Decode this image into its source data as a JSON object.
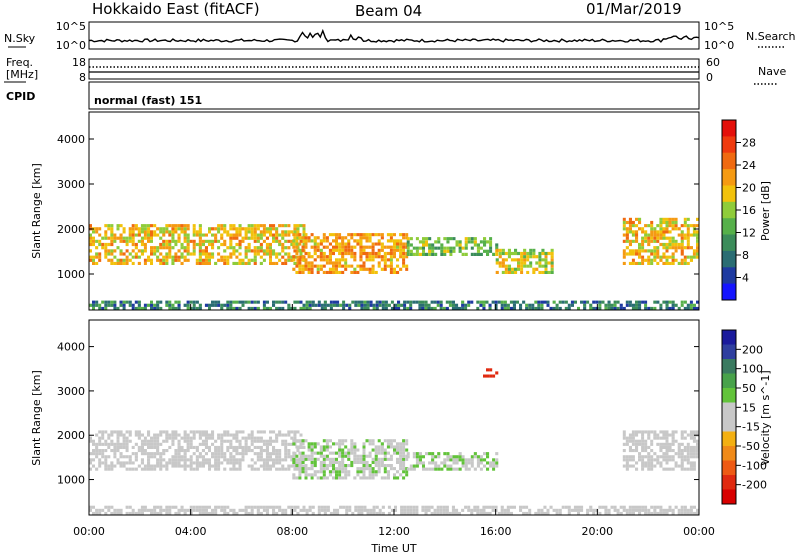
{
  "header": {
    "station": "Hokkaido East (fitACF)",
    "beam": "Beam 04",
    "date": "01/Mar/2019"
  },
  "summary": {
    "nsky_label": "N.Sky",
    "nsky_ticks": [
      "10^5",
      "10^0"
    ],
    "nsearch_label": "N.Search",
    "nsearch_ticks": [
      "10^5",
      "10^0"
    ],
    "freq_label_line1": "Freq.",
    "freq_label_line2": "[MHz]",
    "freq_ticks": [
      "18",
      "8"
    ],
    "nave_label": "Nave",
    "nave_ticks": [
      "60",
      "0"
    ],
    "cpid_label": "CPID",
    "cpid_value": "normal (fast) 151"
  },
  "axes": {
    "ylabel": "Slant Range [km]",
    "y_ticks": [
      "4000",
      "3000",
      "2000",
      "1000"
    ],
    "xlabel": "Time UT",
    "x_ticks": [
      "00:00",
      "04:00",
      "08:00",
      "12:00",
      "16:00",
      "20:00",
      "00:00"
    ]
  },
  "colors": {
    "power": [
      "#1515ff",
      "#1e3aa0",
      "#2a6d73",
      "#3b8c5a",
      "#56b04a",
      "#8fcc3a",
      "#f2c20c",
      "#f59a12",
      "#f06a10",
      "#ef3a0e",
      "#e40f0a"
    ],
    "velocity": [
      "#1a1a9c",
      "#2f3f9f",
      "#3a7a60",
      "#48a24a",
      "#62c33a",
      "#c8c8c8",
      "#c8c8c8",
      "#f3b012",
      "#f08a18",
      "#ee5a14",
      "#e02a10",
      "#d80000"
    ]
  },
  "chart_data": [
    {
      "type": "heatmap",
      "panel": "power",
      "xlabel": "Time UT",
      "ylabel": "Slant Range [km]",
      "xlim": [
        0,
        24
      ],
      "ylim": [
        200,
        4600
      ],
      "colorbar": {
        "label": "Power [dB]",
        "ticks": [
          "28",
          "24",
          "20",
          "16",
          "12",
          "8",
          "4"
        ],
        "range": [
          0,
          32
        ]
      },
      "regions": [
        {
          "t0": 0.0,
          "t1": 8.5,
          "r0": 1200,
          "r1": 2100,
          "value": 20
        },
        {
          "t0": 8.0,
          "t1": 12.5,
          "r0": 1000,
          "r1": 1900,
          "value": 22
        },
        {
          "t0": 12.5,
          "t1": 16.0,
          "r0": 1400,
          "r1": 1800,
          "value": 14
        },
        {
          "t0": 16.0,
          "t1": 18.2,
          "r0": 1000,
          "r1": 1500,
          "value": 18
        },
        {
          "t0": 21.0,
          "t1": 24.0,
          "r0": 1200,
          "r1": 2200,
          "value": 20
        },
        {
          "t0": 0.0,
          "t1": 24.0,
          "r0": 200,
          "r1": 400,
          "value": 8
        }
      ]
    },
    {
      "type": "heatmap",
      "panel": "velocity",
      "xlabel": "Time UT",
      "ylabel": "Slant Range [km]",
      "xlim": [
        0,
        24
      ],
      "ylim": [
        200,
        4600
      ],
      "colorbar": {
        "label": "Velocity [m s^-1]",
        "ticks": [
          "200",
          "100",
          "50",
          "15",
          "-15",
          "-50",
          "-100",
          "-200"
        ],
        "range": [
          -250,
          250
        ]
      },
      "regions": [
        {
          "t0": 0.0,
          "t1": 8.5,
          "r0": 1200,
          "r1": 2100,
          "value": 0
        },
        {
          "t0": 8.0,
          "t1": 12.5,
          "r0": 1000,
          "r1": 1900,
          "value": 35
        },
        {
          "t0": 12.5,
          "t1": 16.0,
          "r0": 1200,
          "r1": 1600,
          "value": 40
        },
        {
          "t0": 15.5,
          "t1": 16.0,
          "r0": 3300,
          "r1": 3500,
          "value": -200
        },
        {
          "t0": 21.0,
          "t1": 24.0,
          "r0": 1200,
          "r1": 2100,
          "value": 0
        },
        {
          "t0": 0.0,
          "t1": 24.0,
          "r0": 200,
          "r1": 400,
          "value": -20
        }
      ]
    }
  ]
}
